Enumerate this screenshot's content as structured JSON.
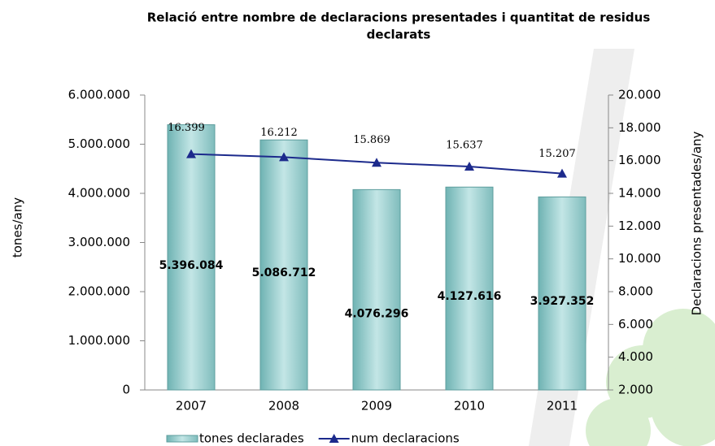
{
  "chart_data": {
    "type": "bar_line",
    "title": [
      "Relació entre nombre de declaracions presentades i quantitat  de residus",
      "declarats"
    ],
    "ylabel": "tones/any",
    "y2label": "Declaracions presentades/any",
    "categories": [
      "2007",
      "2008",
      "2009",
      "2010",
      "2011"
    ],
    "series": [
      {
        "name": "tones declarades",
        "type": "bar",
        "color": "#93cfcf",
        "values": [
          5396084,
          5086712,
          4076296,
          4127616,
          3927352
        ],
        "value_labels": [
          "5.396.084",
          "5.086.712",
          "4.076.296",
          "4.127.616",
          "3.927.352"
        ]
      },
      {
        "name": "num declaracions",
        "type": "line",
        "axis": "y2",
        "color": "#1c2a8c",
        "values": [
          16399,
          16212,
          15869,
          15637,
          15207
        ],
        "value_labels": [
          "16.399",
          "16.212",
          "15.869",
          "15.637",
          "15.207"
        ]
      }
    ],
    "ylim": [
      0,
      6000000
    ],
    "yticks": [
      0,
      {
        "value": 1000000,
        "label": "1.000.000"
      },
      {
        "value": 2000000,
        "label": "2.000.000"
      },
      {
        "value": 3000000,
        "label": "3.000.000"
      },
      {
        "value": 4000000,
        "label": "4.000.000"
      },
      {
        "value": 5000000,
        "label": "5.000.000"
      },
      {
        "value": 6000000,
        "label": "6.000.000"
      }
    ],
    "y2lim": [
      2000,
      20000
    ],
    "y2ticks": [
      {
        "value": 2000,
        "label": "2.000"
      },
      {
        "value": 4000,
        "label": "4.000"
      },
      {
        "value": 6000,
        "label": "6.000"
      },
      {
        "value": 8000,
        "label": "8.000"
      },
      {
        "value": 10000,
        "label": "10.000"
      },
      {
        "value": 12000,
        "label": "12.000"
      },
      {
        "value": 14000,
        "label": "14.000"
      },
      {
        "value": 16000,
        "label": "16.000"
      },
      {
        "value": 18000,
        "label": "18.000"
      },
      {
        "value": 20000,
        "label": "20.000"
      }
    ],
    "legend": "bottom"
  }
}
